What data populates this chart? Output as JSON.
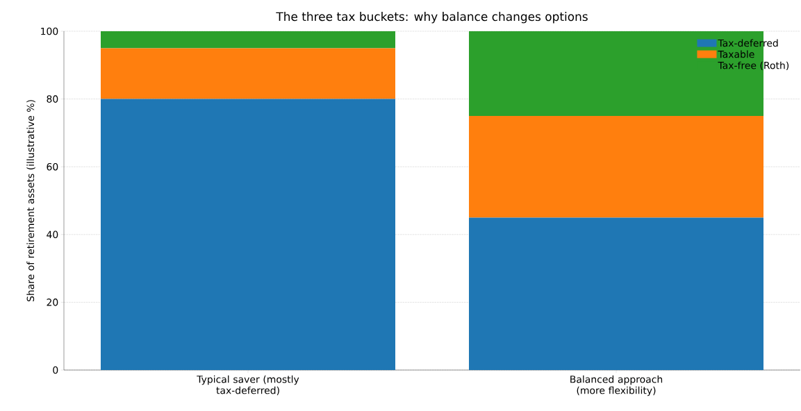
{
  "chart_data": {
    "type": "bar",
    "stacked": true,
    "title": "The three tax buckets: why balance changes options",
    "ylabel": "Share of retirement assets (illustrative %)",
    "categories": [
      "Typical saver (mostly tax-deferred)",
      "Balanced approach (more flexibility)"
    ],
    "series": [
      {
        "name": "Tax-deferred",
        "color": "#1f77b4",
        "values": [
          80,
          45
        ]
      },
      {
        "name": "Taxable",
        "color": "#ff7f0e",
        "values": [
          15,
          30
        ]
      },
      {
        "name": "Tax-free (Roth)",
        "color": "#2ca02c",
        "values": [
          5,
          25
        ]
      }
    ],
    "ylim": [
      0,
      100
    ],
    "yticks": [
      0,
      20,
      40,
      60,
      80,
      100
    ],
    "grid": "y",
    "legend": "top right"
  }
}
